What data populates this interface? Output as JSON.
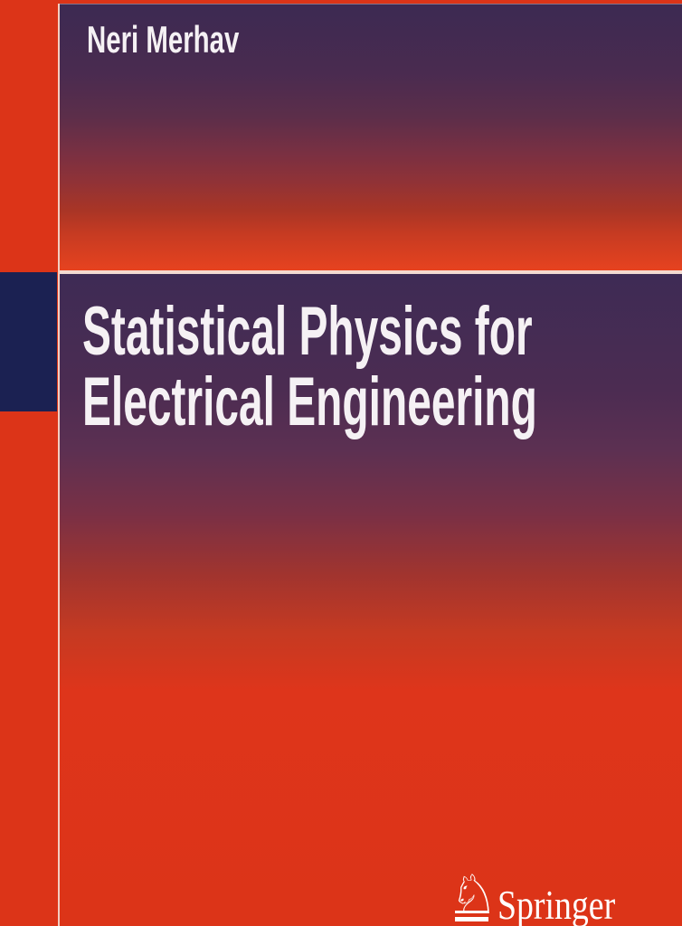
{
  "cover": {
    "author": "Neri Merhav",
    "title": {
      "line1": "Statistical Physics for",
      "line2": "Electrical Engineering"
    },
    "publisher": {
      "wordmark": "Springer",
      "horse_glyph": "♘"
    },
    "colors": {
      "background_red": "#dc3418",
      "panel_bright_red": "#e8431f",
      "panel_purple_dark": "#3c2a52",
      "navy_bar": "#1b2152",
      "separator_line": "#f6e4da",
      "text_white": "#f5f1f4"
    }
  }
}
